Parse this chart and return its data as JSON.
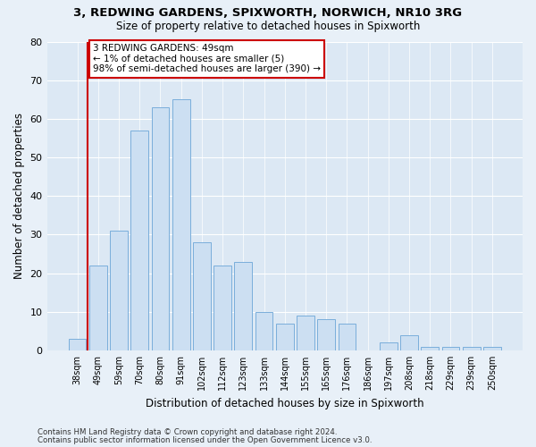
{
  "title1": "3, REDWING GARDENS, SPIXWORTH, NORWICH, NR10 3RG",
  "title2": "Size of property relative to detached houses in Spixworth",
  "xlabel": "Distribution of detached houses by size in Spixworth",
  "ylabel": "Number of detached properties",
  "categories": [
    "38sqm",
    "49sqm",
    "59sqm",
    "70sqm",
    "80sqm",
    "91sqm",
    "102sqm",
    "112sqm",
    "123sqm",
    "133sqm",
    "144sqm",
    "155sqm",
    "165sqm",
    "176sqm",
    "186sqm",
    "197sqm",
    "208sqm",
    "218sqm",
    "229sqm",
    "239sqm",
    "250sqm"
  ],
  "values": [
    3,
    22,
    31,
    57,
    63,
    65,
    28,
    22,
    23,
    10,
    7,
    9,
    8,
    7,
    0,
    2,
    4,
    1,
    1,
    1,
    1
  ],
  "bar_color": "#ccdff2",
  "bar_edge_color": "#7aaedb",
  "highlight_bar_index": 1,
  "highlight_color": "#cc0000",
  "ylim": [
    0,
    80
  ],
  "yticks": [
    0,
    10,
    20,
    30,
    40,
    50,
    60,
    70,
    80
  ],
  "annotation_lines": [
    "3 REDWING GARDENS: 49sqm",
    "← 1% of detached houses are smaller (5)",
    "98% of semi-detached houses are larger (390) →"
  ],
  "footer1": "Contains HM Land Registry data © Crown copyright and database right 2024.",
  "footer2": "Contains public sector information licensed under the Open Government Licence v3.0.",
  "bg_color": "#e8f0f8",
  "plot_bg_color": "#dce8f4"
}
